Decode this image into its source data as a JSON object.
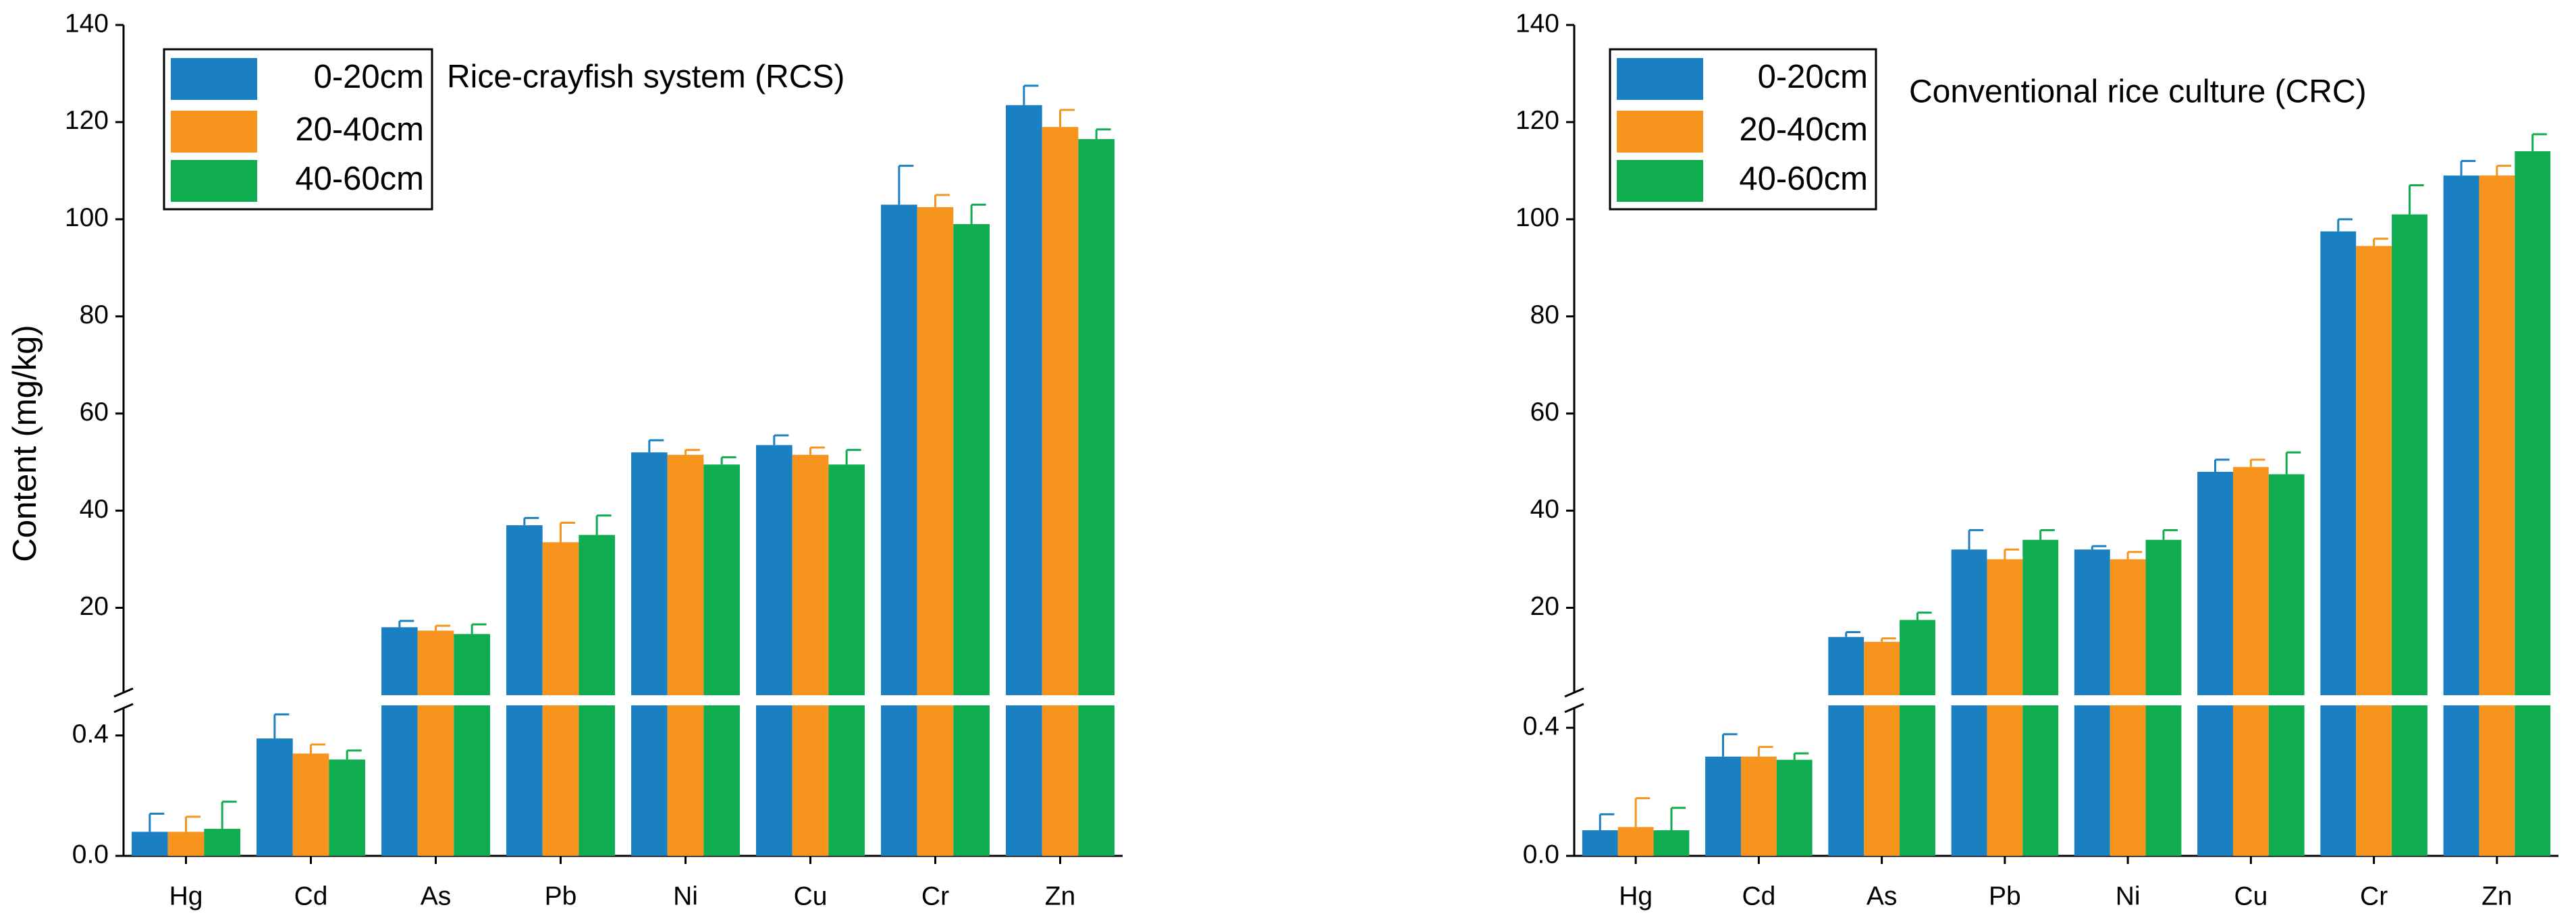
{
  "chart_data": [
    {
      "type": "bar",
      "title": "Rice-crayfish system (RCS)",
      "y_label": "Content (mg/kg)",
      "categories": [
        "Hg",
        "Cd",
        "As",
        "Pb",
        "Ni",
        "Cu",
        "Cr",
        "Zn"
      ],
      "y_break": true,
      "ylim_lower": [
        0,
        0.5
      ],
      "yticks_lower": [
        {
          "value": 0,
          "label": "0.0"
        },
        {
          "value": 0.4,
          "label": "0.4"
        }
      ],
      "ylim_upper": [
        2,
        140
      ],
      "yticks_upper": [
        20,
        40,
        60,
        80,
        100,
        120,
        140
      ],
      "series": [
        {
          "name": "0-20cm",
          "color": "#1a80c2",
          "values": [
            0.08,
            0.39,
            16,
            37,
            52,
            53.5,
            103,
            123.5
          ],
          "errors": [
            0.06,
            0.08,
            1.3,
            1.5,
            2.5,
            2,
            8,
            4
          ]
        },
        {
          "name": "20-40cm",
          "color": "#f7941d",
          "values": [
            0.08,
            0.34,
            15.3,
            33.5,
            51.5,
            51.5,
            102.5,
            119
          ],
          "errors": [
            0.05,
            0.03,
            1,
            4,
            1,
            1.5,
            2.5,
            3.5
          ]
        },
        {
          "name": "40-60cm",
          "color": "#10ac50",
          "values": [
            0.09,
            0.32,
            14.6,
            35,
            49.5,
            49.5,
            99,
            116.5
          ],
          "errors": [
            0.09,
            0.03,
            2,
            4,
            1.5,
            3,
            4,
            2
          ]
        }
      ]
    },
    {
      "type": "bar",
      "title": "Conventional rice culture (CRC)",
      "categories": [
        "Hg",
        "Cd",
        "As",
        "Pb",
        "Ni",
        "Cu",
        "Cr",
        "Zn"
      ],
      "y_break": true,
      "ylim_lower": [
        0,
        0.47
      ],
      "yticks_lower": [
        {
          "value": 0,
          "label": "0.0"
        },
        {
          "value": 0.4,
          "label": "0.4"
        }
      ],
      "ylim_upper": [
        2,
        140
      ],
      "yticks_upper": [
        20,
        40,
        60,
        80,
        100,
        120,
        140
      ],
      "series": [
        {
          "name": "0-20cm",
          "color": "#1a80c2",
          "values": [
            0.08,
            0.31,
            14,
            32,
            32,
            48,
            97.5,
            109
          ],
          "errors": [
            0.05,
            0.07,
            1,
            4,
            0.7,
            2.5,
            2.5,
            3
          ]
        },
        {
          "name": "20-40cm",
          "color": "#f7941d",
          "values": [
            0.09,
            0.31,
            13,
            30,
            30,
            49,
            94.5,
            109
          ],
          "errors": [
            0.09,
            0.03,
            0.7,
            2,
            1.5,
            1.5,
            1.5,
            2
          ]
        },
        {
          "name": "40-60cm",
          "color": "#10ac50",
          "values": [
            0.08,
            0.3,
            17.5,
            34,
            34,
            47.5,
            101,
            114
          ],
          "errors": [
            0.07,
            0.02,
            1.5,
            2,
            2,
            4.5,
            6,
            3.5
          ]
        }
      ]
    }
  ]
}
